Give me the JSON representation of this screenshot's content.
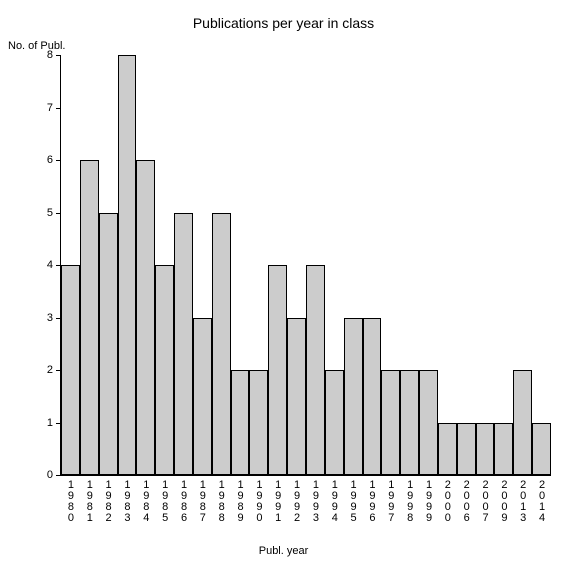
{
  "chart": {
    "type": "bar",
    "title": "Publications per year in class",
    "y_axis_label": "No. of Publ.",
    "x_axis_label": "Publ. year",
    "ylim": [
      0,
      8
    ],
    "ytick_step": 1,
    "yticks": [
      0,
      1,
      2,
      3,
      4,
      5,
      6,
      7,
      8
    ],
    "categories": [
      "1980",
      "1981",
      "1982",
      "1983",
      "1984",
      "1985",
      "1986",
      "1987",
      "1988",
      "1989",
      "1990",
      "1991",
      "1992",
      "1993",
      "1994",
      "1995",
      "1996",
      "1997",
      "1998",
      "1999",
      "2000",
      "2006",
      "2007",
      "2009",
      "2013",
      "2014"
    ],
    "values": [
      4,
      6,
      5,
      8,
      6,
      4,
      5,
      3,
      5,
      2,
      2,
      4,
      3,
      4,
      2,
      3,
      3,
      2,
      2,
      2,
      1,
      1,
      1,
      1,
      2,
      1
    ],
    "bar_color": "#cccccc",
    "bar_border_color": "#000000",
    "axis_color": "#000000",
    "background_color": "#ffffff",
    "text_color": "#000000",
    "title_fontsize": 14,
    "label_fontsize": 11,
    "tick_fontsize": 11,
    "bar_width": 1.0
  }
}
